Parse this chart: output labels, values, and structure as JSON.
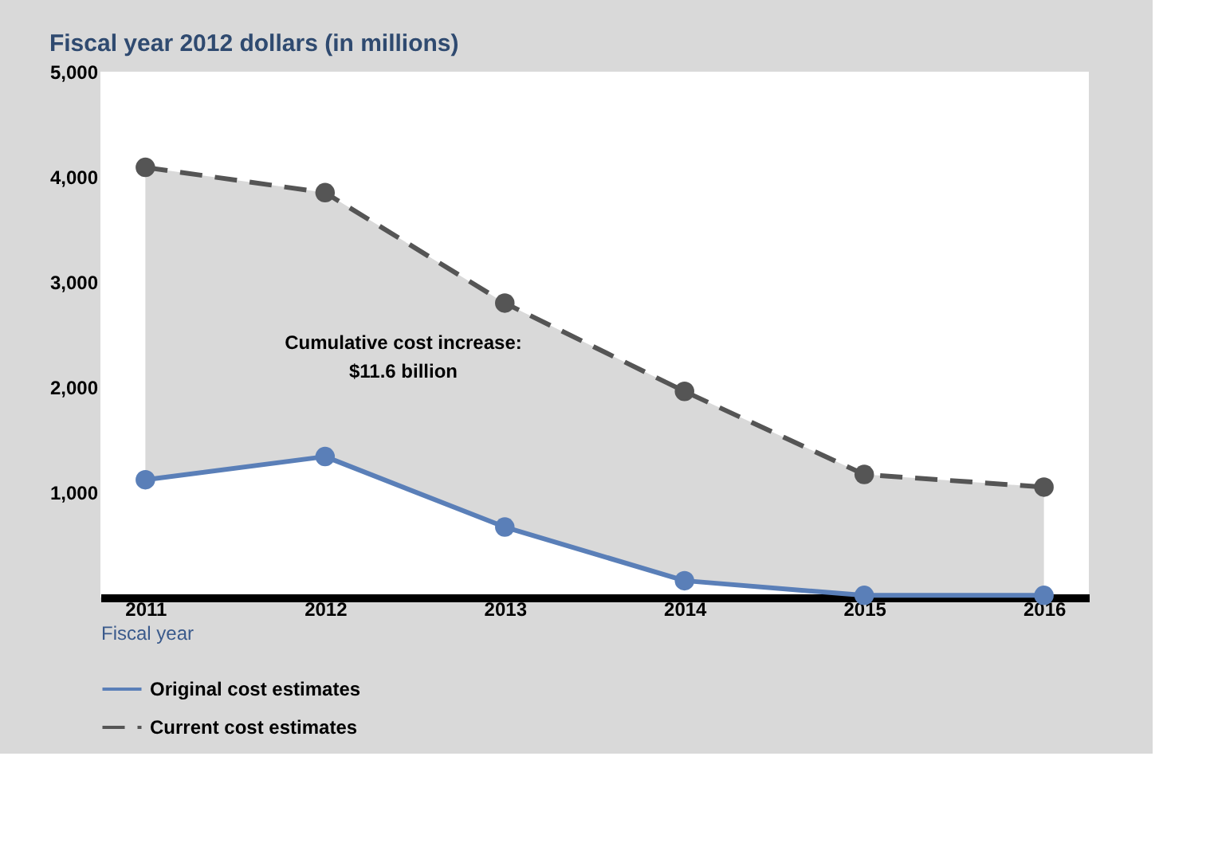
{
  "chart_data": {
    "type": "line",
    "title": "Fiscal year 2012 dollars (in millions)",
    "xlabel": "Fiscal year",
    "categories": [
      "2011",
      "2012",
      "2013",
      "2014",
      "2015",
      "2016"
    ],
    "series": [
      {
        "name": "Original cost estimates",
        "color": "#5a7fb8",
        "line_style": "solid",
        "values": [
          1120,
          1340,
          670,
          160,
          20,
          20
        ]
      },
      {
        "name": "Current cost estimates",
        "color": "#555555",
        "line_style": "dashed",
        "values": [
          4090,
          3850,
          2800,
          1960,
          1170,
          1050
        ],
        "lower": [
          1120,
          1340,
          670,
          160,
          20,
          20
        ],
        "upper": [
          4090,
          3850,
          2800,
          1960,
          1170,
          1050
        ]
      }
    ],
    "ylim": [
      0,
      5000
    ],
    "yticks": [
      {
        "value": 1000,
        "label": "1,000"
      },
      {
        "value": 2000,
        "label": "2,000"
      },
      {
        "value": 3000,
        "label": "3,000"
      },
      {
        "value": 4000,
        "label": "4,000"
      },
      {
        "value": 5000,
        "label": "5,000"
      }
    ],
    "marker": "circle",
    "grid": false,
    "legend": "bottom left",
    "annotations": [
      "Cumulative cost increase:\n$11.6 billion"
    ]
  }
}
